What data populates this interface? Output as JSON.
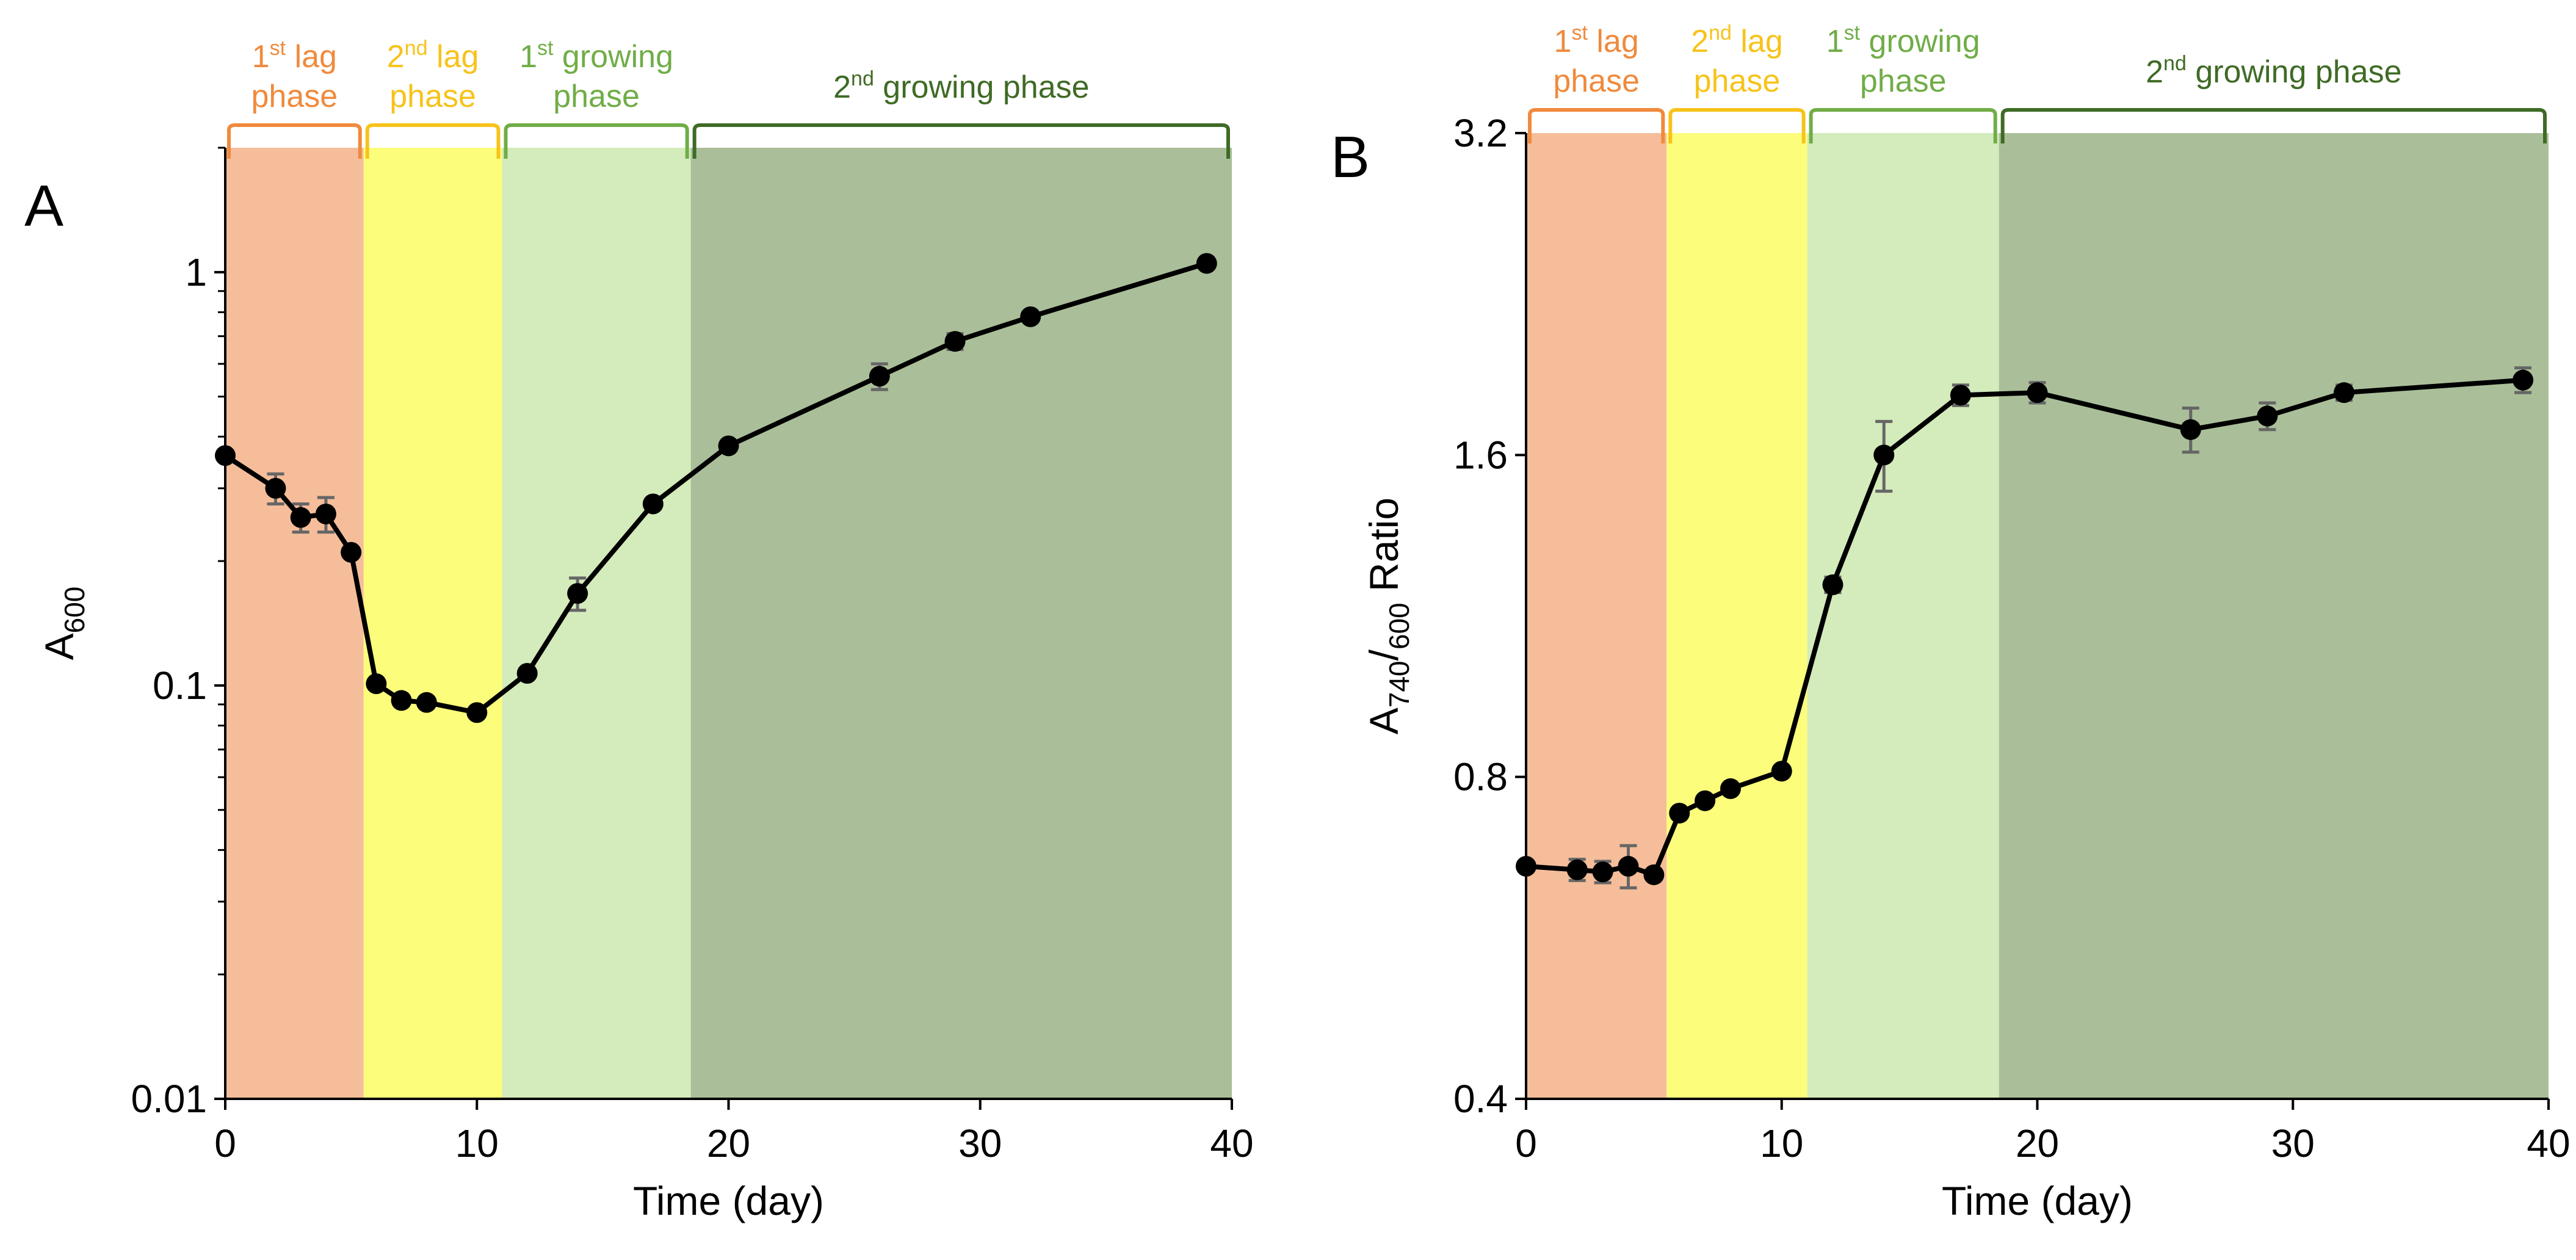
{
  "chart_data": [
    {
      "type": "line",
      "panel_label": "A",
      "xlabel": "Time (day)",
      "ylabel": {
        "base": "A",
        "sub": "600"
      },
      "yscale": "log10",
      "xlim": [
        0,
        40
      ],
      "ylim": [
        0.01,
        2
      ],
      "xticks": [
        "0",
        "10",
        "20",
        "30",
        "40"
      ],
      "yticks": [
        {
          "v": 0.01,
          "label": "0.01"
        },
        {
          "v": 0.1,
          "label": "0.1"
        },
        {
          "v": 1,
          "label": "1"
        }
      ],
      "x": [
        0,
        2,
        3,
        4,
        5,
        6,
        7,
        8,
        10,
        12,
        14,
        17,
        20,
        26,
        29,
        32,
        39
      ],
      "y": [
        0.36,
        0.3,
        0.255,
        0.26,
        0.21,
        0.101,
        0.092,
        0.091,
        0.086,
        0.107,
        0.167,
        0.275,
        0.38,
        0.56,
        0.68,
        0.78,
        1.05
      ],
      "err": [
        0,
        0.025,
        0.02,
        0.025,
        0,
        0,
        0,
        0,
        0,
        0,
        0.015,
        0,
        0,
        0.04,
        0.03,
        0,
        0
      ],
      "phases": [
        {
          "label": "1st lag phase",
          "sup": "st",
          "start": 0,
          "end": 5.5,
          "fill": "#F5BD9A",
          "color": "#F08A3C"
        },
        {
          "label": "2nd lag phase",
          "sup": "nd",
          "start": 5.5,
          "end": 11,
          "fill": "#FDFD7C",
          "color": "#F7C31A"
        },
        {
          "label": "1st growing phase",
          "sup": "st",
          "start": 11,
          "end": 18.5,
          "fill": "#D4EBBB",
          "color": "#70AD47"
        },
        {
          "label": "2nd growing phase",
          "sup": "nd",
          "start": 18.5,
          "end": 40,
          "fill": "#AABF99",
          "color": "#3F6B25"
        }
      ]
    },
    {
      "type": "line",
      "panel_label": "B",
      "xlabel": "Time (day)",
      "ylabel": {
        "base": "A",
        "sub": "740",
        "mid": "/",
        "sub2": "600",
        "tail": " Ratio"
      },
      "yscale": "log2",
      "xlim": [
        0,
        40
      ],
      "ylim": [
        0.4,
        3.2
      ],
      "xticks": [
        "0",
        "10",
        "20",
        "30",
        "40"
      ],
      "yticks": [
        {
          "v": 0.4,
          "label": "0.4"
        },
        {
          "v": 0.8,
          "label": "0.8"
        },
        {
          "v": 1.6,
          "label": "1.6"
        },
        {
          "v": 3.2,
          "label": "3.2"
        }
      ],
      "x": [
        0,
        2,
        3,
        4,
        5,
        6,
        7,
        8,
        10,
        12,
        14,
        17,
        20,
        26,
        29,
        32,
        39
      ],
      "y": [
        0.66,
        0.655,
        0.652,
        0.66,
        0.648,
        0.74,
        0.76,
        0.78,
        0.81,
        1.21,
        1.6,
        1.82,
        1.83,
        1.69,
        1.74,
        1.83,
        1.88
      ],
      "err": [
        0,
        0.015,
        0.015,
        0.03,
        0,
        0,
        0,
        0,
        0,
        0.02,
        0.12,
        0.04,
        0.04,
        0.08,
        0.05,
        0.03,
        0.05
      ],
      "phases": [
        {
          "label": "1st lag phase",
          "sup": "st",
          "start": 0,
          "end": 5.5,
          "fill": "#F5BD9A",
          "color": "#F08A3C"
        },
        {
          "label": "2nd lag phase",
          "sup": "nd",
          "start": 5.5,
          "end": 11,
          "fill": "#FDFD7C",
          "color": "#F7C31A"
        },
        {
          "label": "1st growing phase",
          "sup": "st",
          "start": 11,
          "end": 18.5,
          "fill": "#D4EBBB",
          "color": "#70AD47"
        },
        {
          "label": "2nd growing phase",
          "sup": "nd",
          "start": 18.5,
          "end": 40,
          "fill": "#AABF99",
          "color": "#3F6B25"
        }
      ]
    }
  ]
}
